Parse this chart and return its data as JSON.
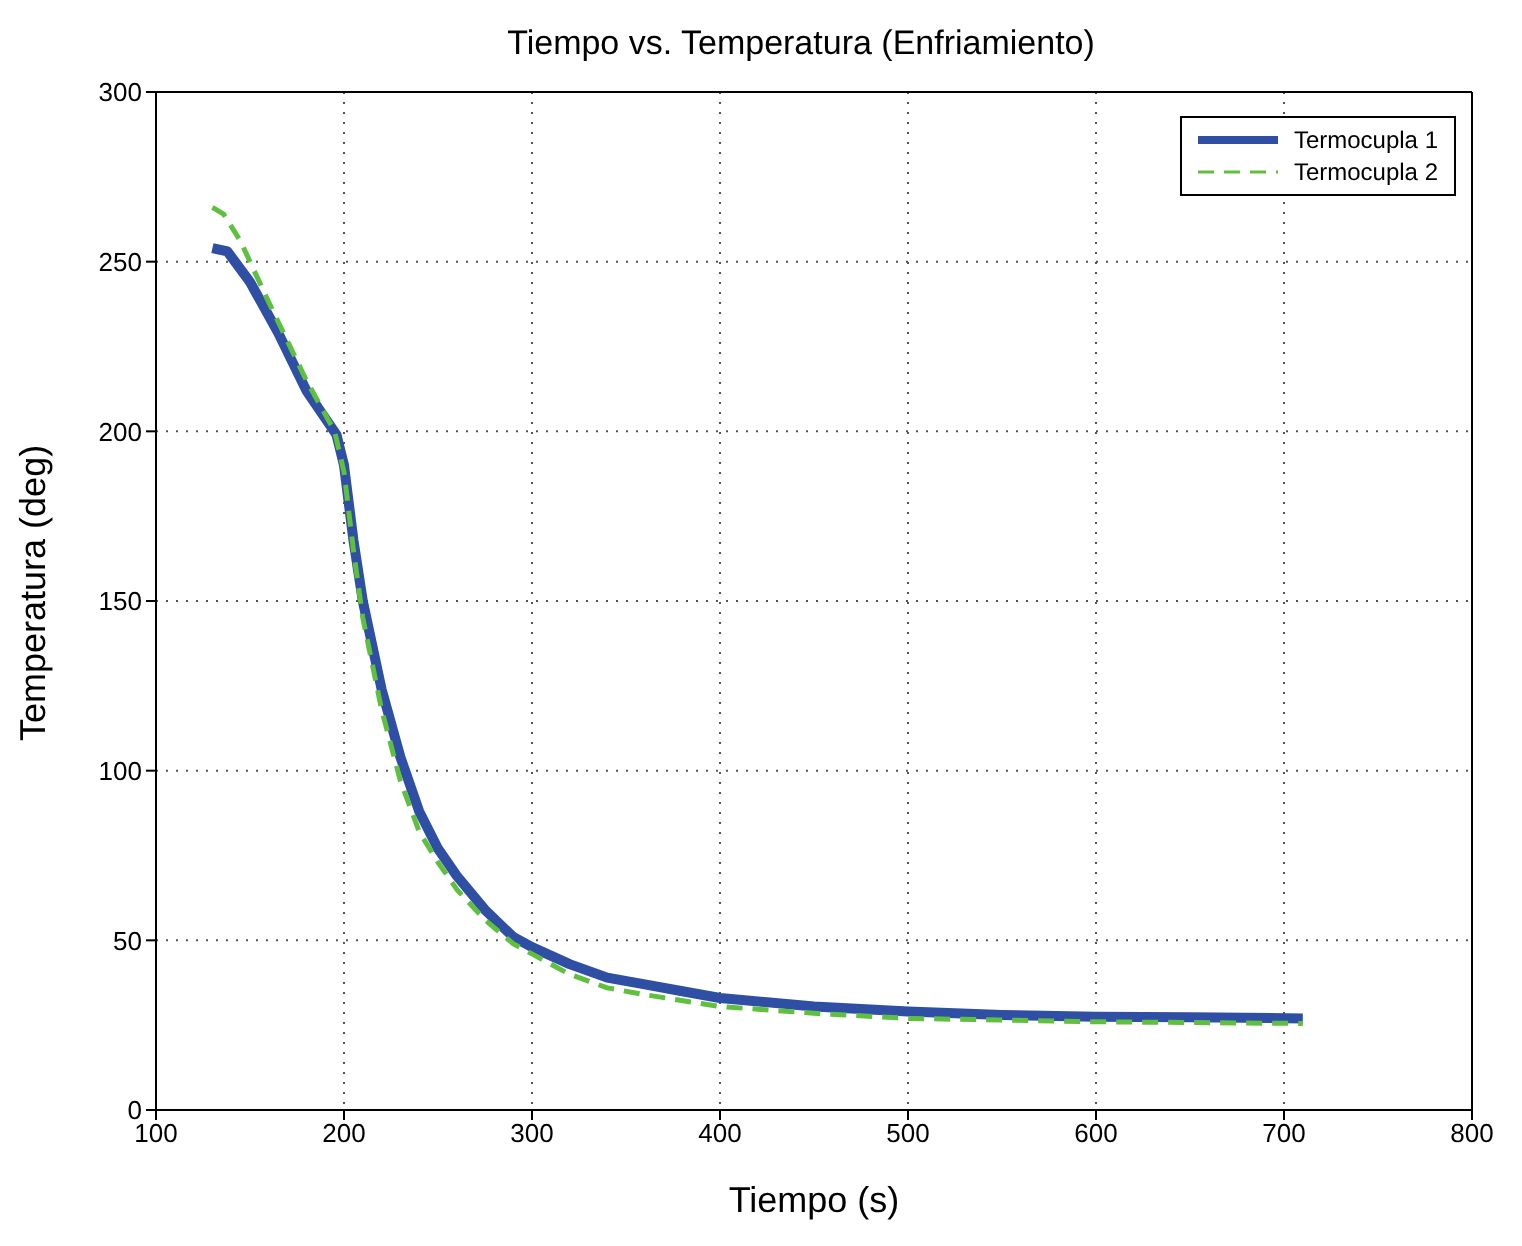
{
  "chart_data": {
    "type": "line",
    "title": "Tiempo vs. Temperatura (Enfriamiento)",
    "xlabel": "Tiempo (s)",
    "ylabel": "Temperatura (deg)",
    "xlim": [
      100,
      800
    ],
    "xticks": [
      100,
      200,
      300,
      400,
      500,
      600,
      700,
      800
    ],
    "ylim": [
      0,
      300
    ],
    "yticks": [
      0,
      50,
      100,
      150,
      200,
      250,
      300
    ],
    "grid": true,
    "legend": "top right",
    "marker": "none",
    "series": [
      {
        "name": "Termocupla 1",
        "color": "#2e4fa3",
        "line_style": "solid",
        "x": [
          130,
          138,
          150,
          165,
          180,
          196,
          200,
          205,
          210,
          220,
          230,
          240,
          250,
          260,
          275,
          290,
          300,
          320,
          340,
          360,
          380,
          400,
          450,
          500,
          550,
          600,
          650,
          710
        ],
        "values": [
          254,
          253,
          244,
          229,
          212,
          199,
          190,
          168,
          150,
          124,
          104,
          88,
          77,
          69,
          59,
          51,
          48,
          43,
          39,
          37,
          35,
          33,
          30.5,
          29,
          28,
          27.5,
          27.3,
          27
        ]
      },
      {
        "name": "Termocupla 2",
        "color": "#5fbf3f",
        "line_style": "dashed",
        "x": [
          130,
          136,
          145,
          160,
          180,
          195,
          200,
          205,
          210,
          220,
          230,
          240,
          250,
          260,
          275,
          290,
          300,
          320,
          340,
          360,
          400,
          450,
          500,
          600,
          710
        ],
        "values": [
          266,
          264,
          256,
          238,
          215,
          200,
          188,
          165,
          145,
          118,
          97,
          82,
          73,
          65,
          56,
          49,
          46,
          40,
          36,
          34,
          30.5,
          28.5,
          27,
          26,
          25.5
        ]
      }
    ]
  }
}
